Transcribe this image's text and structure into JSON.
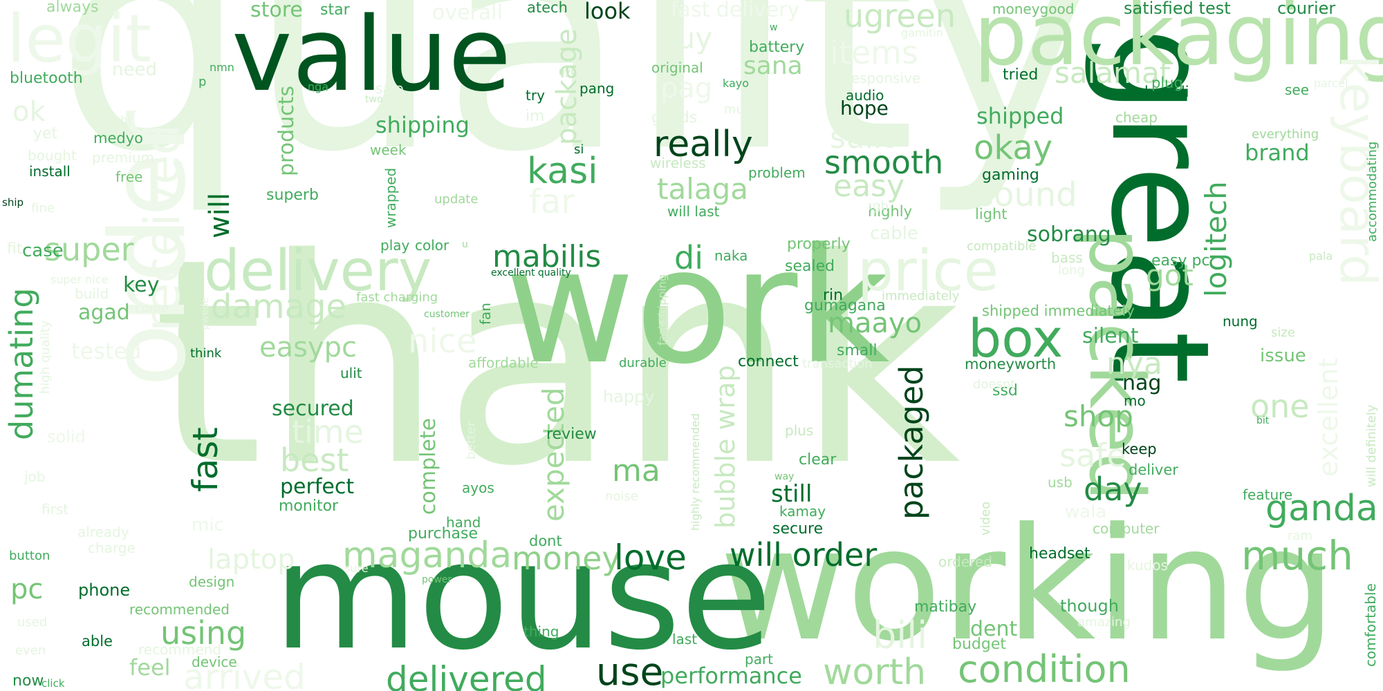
{
  "cloud": {
    "palette": [
      "#e5f5e0",
      "#c7e9c0",
      "#a1d99b",
      "#74c476",
      "#41ab5d",
      "#238b45",
      "#006d2c",
      "#00441b"
    ],
    "words": [
      {
        "text": "quality",
        "color": "#e5f5e0"
      },
      {
        "text": "thank",
        "color": "#d4eecb"
      },
      {
        "text": "work",
        "color": "#8fd18a"
      },
      {
        "text": "working",
        "color": "#a1d99b"
      },
      {
        "text": "mouse",
        "color": "#238b45"
      },
      {
        "text": "value",
        "color": "#00541f"
      },
      {
        "text": "great",
        "color": "#006d2c"
      },
      {
        "text": "packaging",
        "color": "#b8e3ad"
      },
      {
        "text": "order",
        "color": "#eef8ea"
      },
      {
        "text": "legit",
        "color": "#eef8ea"
      },
      {
        "text": "keyboard",
        "color": "#eef8ea"
      },
      {
        "text": "packed",
        "color": "#a1d99b"
      },
      {
        "text": "delivery",
        "color": "#c7e9c0"
      },
      {
        "text": "price",
        "color": "#e5f5e0"
      },
      {
        "text": "box",
        "color": "#41ab5d"
      },
      {
        "text": "received",
        "color": "#eef8ea"
      },
      {
        "text": "condition",
        "color": "#74c476"
      },
      {
        "text": "delivered",
        "color": "#41ab5d"
      },
      {
        "text": "worth",
        "color": "#a1d99b"
      },
      {
        "text": "bili",
        "color": "#e5f5e0"
      },
      {
        "text": "use",
        "color": "#00441b"
      },
      {
        "text": "performance",
        "color": "#41ab5d"
      },
      {
        "text": "arrived",
        "color": "#eef8ea"
      },
      {
        "text": "feel",
        "color": "#a1d99b"
      },
      {
        "text": "using",
        "color": "#74c476"
      },
      {
        "text": "maganda",
        "color": "#a1d99b"
      },
      {
        "text": "money",
        "color": "#8fd18a"
      },
      {
        "text": "love",
        "color": "#006d2c"
      },
      {
        "text": "will order",
        "color": "#006d2c"
      },
      {
        "text": "much",
        "color": "#74c476"
      },
      {
        "text": "ganda",
        "color": "#41ab5d"
      },
      {
        "text": "really",
        "color": "#00441b"
      },
      {
        "text": "kasi",
        "color": "#41ab5d"
      },
      {
        "text": "mabilis",
        "color": "#238b45"
      },
      {
        "text": "di",
        "color": "#41ab5d"
      },
      {
        "text": "smooth",
        "color": "#238b45"
      },
      {
        "text": "okay",
        "color": "#74c476"
      },
      {
        "text": "sound",
        "color": "#e5f5e0"
      },
      {
        "text": "easy",
        "color": "#c7e9c0"
      },
      {
        "text": "talaga",
        "color": "#a1d99b"
      },
      {
        "text": "sulit",
        "color": "#e5f5e0"
      },
      {
        "text": "ugreen",
        "color": "#c7e9c0"
      },
      {
        "text": "items",
        "color": "#eef8ea"
      },
      {
        "text": "buy",
        "color": "#e5f5e0"
      },
      {
        "text": "sana",
        "color": "#a1d99b"
      },
      {
        "text": "salamat",
        "color": "#c7e9c0"
      },
      {
        "text": "pag",
        "color": "#eef8ea"
      },
      {
        "text": "package",
        "color": "#c7e9c0"
      },
      {
        "text": "shipping",
        "color": "#41ab5d"
      },
      {
        "text": "products",
        "color": "#74c476"
      },
      {
        "text": "will",
        "color": "#006d2c"
      },
      {
        "text": "fast",
        "color": "#006d2c"
      },
      {
        "text": "super",
        "color": "#a1d99b"
      },
      {
        "text": "damage",
        "color": "#c7e9c0"
      },
      {
        "text": "easypc",
        "color": "#a1d99b"
      },
      {
        "text": "nice",
        "color": "#eef8ea"
      },
      {
        "text": "time",
        "color": "#e5f5e0"
      },
      {
        "text": "best",
        "color": "#c7e9c0"
      },
      {
        "text": "perfect",
        "color": "#006d2c"
      },
      {
        "text": "secured",
        "color": "#238b45"
      },
      {
        "text": "dumating",
        "color": "#41ab5d"
      },
      {
        "text": "key",
        "color": "#238b45"
      },
      {
        "text": "agad",
        "color": "#74c476"
      },
      {
        "text": "case",
        "color": "#41ab5d"
      },
      {
        "text": "laptop",
        "color": "#e5f5e0"
      },
      {
        "text": "pc",
        "color": "#74c476"
      },
      {
        "text": "expected",
        "color": "#a1d99b"
      },
      {
        "text": "complete",
        "color": "#74c476"
      },
      {
        "text": "bubble wrap",
        "color": "#c7e9c0"
      },
      {
        "text": "packaged",
        "color": "#00441b"
      },
      {
        "text": "maayo",
        "color": "#74c476"
      },
      {
        "text": "ma",
        "color": "#74c476"
      },
      {
        "text": "shop",
        "color": "#74c476"
      },
      {
        "text": "day",
        "color": "#238b45"
      },
      {
        "text": "nya",
        "color": "#c7e9c0"
      },
      {
        "text": "safe",
        "color": "#e5f5e0"
      },
      {
        "text": "silent",
        "color": "#41ab5d"
      },
      {
        "text": "logitech",
        "color": "#41ab5d"
      },
      {
        "text": "got",
        "color": "#a1d99b"
      },
      {
        "text": "sobrang",
        "color": "#238b45"
      },
      {
        "text": "one",
        "color": "#c7e9c0"
      },
      {
        "text": "nag",
        "color": "#00441b"
      },
      {
        "text": "shipped",
        "color": "#41ab5d"
      },
      {
        "text": "brand",
        "color": "#41ab5d"
      },
      {
        "text": "excellent",
        "color": "#eef8ea"
      },
      {
        "text": "look",
        "color": "#00441b"
      },
      {
        "text": "overall",
        "color": "#eef8ea"
      },
      {
        "text": "fast delivery",
        "color": "#eef8ea"
      },
      {
        "text": "store",
        "color": "#74c476"
      },
      {
        "text": "star",
        "color": "#41ab5d"
      },
      {
        "text": "atech",
        "color": "#238b45"
      },
      {
        "text": "always",
        "color": "#a1d99b"
      },
      {
        "text": "satisfied test",
        "color": "#238b45"
      },
      {
        "text": "courier",
        "color": "#238b45"
      },
      {
        "text": "moneygood",
        "color": "#74c476"
      },
      {
        "text": "hope",
        "color": "#00441b"
      },
      {
        "text": "audio",
        "color": "#006d2c"
      },
      {
        "text": "shipped immediately",
        "color": "#74c476"
      },
      {
        "text": "moneyworth",
        "color": "#238b45"
      },
      {
        "text": "connect",
        "color": "#006d2c"
      },
      {
        "text": "review",
        "color": "#238b45"
      },
      {
        "text": "still",
        "color": "#006d2c"
      },
      {
        "text": "purchase",
        "color": "#41ab5d"
      },
      {
        "text": "monitor",
        "color": "#41ab5d"
      },
      {
        "text": "headset",
        "color": "#006d2c"
      },
      {
        "text": "matibay",
        "color": "#41ab5d"
      },
      {
        "text": "dent",
        "color": "#74c476"
      },
      {
        "text": "budget",
        "color": "#74c476"
      },
      {
        "text": "though",
        "color": "#41ab5d"
      },
      {
        "text": "phone",
        "color": "#006d2c"
      },
      {
        "text": "bluetooth",
        "color": "#41ab5d"
      },
      {
        "text": "install",
        "color": "#006d2c"
      },
      {
        "text": "medyo",
        "color": "#41ab5d"
      },
      {
        "text": "free",
        "color": "#74c476"
      },
      {
        "text": "superb",
        "color": "#41ab5d"
      },
      {
        "text": "color",
        "color": "#41ab5d"
      },
      {
        "text": "gaming",
        "color": "#006d2c"
      },
      {
        "text": "battery",
        "color": "#41ab5d"
      },
      {
        "text": "tried",
        "color": "#006d2c"
      },
      {
        "text": "bumili",
        "color": "#006d2c"
      },
      {
        "text": "plug",
        "color": "#41ab5d"
      },
      {
        "text": "easy pc",
        "color": "#41ab5d"
      },
      {
        "text": "ssd",
        "color": "#41ab5d"
      },
      {
        "text": "keep",
        "color": "#00441b"
      },
      {
        "text": "deliver",
        "color": "#41ab5d"
      },
      {
        "text": "mo",
        "color": "#006d2c"
      },
      {
        "text": "nung",
        "color": "#006d2c"
      },
      {
        "text": "issue",
        "color": "#74c476"
      },
      {
        "text": "feature",
        "color": "#41ab5d"
      },
      {
        "text": "comfortable",
        "color": "#41ab5d"
      },
      {
        "text": "accommodating",
        "color": "#41ab5d"
      },
      {
        "text": "able",
        "color": "#006d2c"
      },
      {
        "text": "now",
        "color": "#238b45"
      },
      {
        "text": "click",
        "color": "#41ab5d"
      },
      {
        "text": "button",
        "color": "#41ab5d"
      },
      {
        "text": "ship",
        "color": "#00441b"
      },
      {
        "text": "highly",
        "color": "#74c476"
      },
      {
        "text": "light",
        "color": "#74c476"
      },
      {
        "text": "rin",
        "color": "#006d2c"
      },
      {
        "text": "gumagana",
        "color": "#41ab5d"
      },
      {
        "text": "sealed",
        "color": "#41ab5d"
      },
      {
        "text": "properly",
        "color": "#74c476"
      },
      {
        "text": "small",
        "color": "#41ab5d"
      },
      {
        "text": "naka",
        "color": "#41ab5d"
      },
      {
        "text": "problem",
        "color": "#41ab5d"
      },
      {
        "text": "will last",
        "color": "#41ab5d"
      },
      {
        "text": "kamay",
        "color": "#41ab5d"
      },
      {
        "text": "secure",
        "color": "#006d2c"
      },
      {
        "text": "clear",
        "color": "#41ab5d"
      },
      {
        "text": "dont",
        "color": "#41ab5d"
      },
      {
        "text": "hand",
        "color": "#41ab5d"
      },
      {
        "text": "ayos",
        "color": "#41ab5d"
      },
      {
        "text": "thing",
        "color": "#41ab5d"
      },
      {
        "text": "last",
        "color": "#41ab5d"
      },
      {
        "text": "part",
        "color": "#41ab5d"
      },
      {
        "text": "recommended",
        "color": "#74c476"
      },
      {
        "text": "design",
        "color": "#74c476"
      },
      {
        "text": "device",
        "color": "#74c476"
      },
      {
        "text": "think",
        "color": "#006d2c"
      },
      {
        "text": "ulit",
        "color": "#238b45"
      },
      {
        "text": "durable",
        "color": "#41ab5d"
      },
      {
        "text": "affordable",
        "color": "#a1d99b"
      },
      {
        "text": "fan",
        "color": "#41ab5d"
      },
      {
        "text": "excellent quality",
        "color": "#006d2c"
      },
      {
        "text": "customer",
        "color": "#74c476"
      },
      {
        "text": "fast charging",
        "color": "#a1d99b"
      },
      {
        "text": "wrapped",
        "color": "#41ab5d"
      },
      {
        "text": "play",
        "color": "#41ab5d"
      },
      {
        "text": "update",
        "color": "#a1d99b"
      },
      {
        "text": "week",
        "color": "#74c476"
      },
      {
        "text": "si",
        "color": "#006d2c"
      },
      {
        "text": "try",
        "color": "#006d2c"
      },
      {
        "text": "pang",
        "color": "#006d2c"
      },
      {
        "text": "nga",
        "color": "#41ab5d"
      },
      {
        "text": "nmn",
        "color": "#41ab5d"
      },
      {
        "text": "original",
        "color": "#74c476"
      },
      {
        "text": "kayo",
        "color": "#41ab5d"
      },
      {
        "text": "wireless",
        "color": "#c7e9c0"
      },
      {
        "text": "cable",
        "color": "#e5f5e0"
      },
      {
        "text": "bass",
        "color": "#c7e9c0"
      },
      {
        "text": "usb",
        "color": "#a1d99b"
      },
      {
        "text": "computer",
        "color": "#a1d99b"
      },
      {
        "text": "video",
        "color": "#c7e9c0"
      },
      {
        "text": "see",
        "color": "#41ab5d"
      },
      {
        "text": "cheap",
        "color": "#a1d99b"
      },
      {
        "text": "everything",
        "color": "#a1d99b"
      },
      {
        "text": "size",
        "color": "#c7e9c0"
      },
      {
        "text": "pala",
        "color": "#c7e9c0"
      },
      {
        "text": "bit",
        "color": "#41ab5d"
      },
      {
        "text": "will definitely",
        "color": "#c7e9c0"
      },
      {
        "text": "kudos",
        "color": "#e5f5e0"
      },
      {
        "text": "ordered",
        "color": "#c7e9c0"
      },
      {
        "text": "amazing",
        "color": "#e5f5e0"
      },
      {
        "text": "plus",
        "color": "#c7e9c0"
      },
      {
        "text": "happy",
        "color": "#e5f5e0"
      },
      {
        "text": "way",
        "color": "#74c476"
      },
      {
        "text": "noise",
        "color": "#e5f5e0"
      },
      {
        "text": "better",
        "color": "#e5f5e0"
      },
      {
        "text": "highly recommended",
        "color": "#c7e9c0"
      },
      {
        "text": "fast shipping",
        "color": "#c7e9c0"
      },
      {
        "text": "immediately",
        "color": "#c7e9c0"
      },
      {
        "text": "transaction",
        "color": "#e5f5e0"
      },
      {
        "text": "doesnt",
        "color": "#e5f5e0"
      },
      {
        "text": "compatible",
        "color": "#c7e9c0"
      },
      {
        "text": "rgb",
        "color": "#e5f5e0"
      },
      {
        "text": "responsive",
        "color": "#e5f5e0"
      },
      {
        "text": "gamitin",
        "color": "#e5f5e0"
      },
      {
        "text": "goods",
        "color": "#e5f5e0"
      },
      {
        "text": "mura",
        "color": "#e5f5e0"
      },
      {
        "text": "sale",
        "color": "#e5f5e0"
      },
      {
        "text": "two",
        "color": "#c7e9c0"
      },
      {
        "text": "im",
        "color": "#e5f5e0"
      },
      {
        "text": "mag",
        "color": "#e5f5e0"
      },
      {
        "text": "w",
        "color": "#41ab5d"
      },
      {
        "text": "nyo",
        "color": "#c7e9c0"
      },
      {
        "text": "p",
        "color": "#41ab5d"
      },
      {
        "text": "parcel",
        "color": "#e5f5e0"
      },
      {
        "text": "u",
        "color": "#a1d99b"
      },
      {
        "text": "long",
        "color": "#e5f5e0"
      },
      {
        "text": "need",
        "color": "#e5f5e0"
      },
      {
        "text": "ok",
        "color": "#e5f5e0"
      },
      {
        "text": "yet",
        "color": "#e5f5e0"
      },
      {
        "text": "right",
        "color": "#e5f5e0"
      },
      {
        "text": "premium",
        "color": "#e5f5e0"
      },
      {
        "text": "bought",
        "color": "#e5f5e0"
      },
      {
        "text": "fine",
        "color": "#e5f5e0"
      },
      {
        "text": "fit",
        "color": "#e5f5e0"
      },
      {
        "text": "super nice",
        "color": "#e5f5e0"
      },
      {
        "text": "build",
        "color": "#e5f5e0"
      },
      {
        "text": "come",
        "color": "#e5f5e0"
      },
      {
        "text": "high quality",
        "color": "#e5f5e0"
      },
      {
        "text": "pwede",
        "color": "#e5f5e0"
      },
      {
        "text": "tested",
        "color": "#eef8ea"
      },
      {
        "text": "solid",
        "color": "#eef8ea"
      },
      {
        "text": "job",
        "color": "#e5f5e0"
      },
      {
        "text": "first",
        "color": "#e5f5e0"
      },
      {
        "text": "already",
        "color": "#e5f5e0"
      },
      {
        "text": "mic",
        "color": "#eef8ea"
      },
      {
        "text": "charge",
        "color": "#e5f5e0"
      },
      {
        "text": "sure",
        "color": "#e5f5e0"
      },
      {
        "text": "power",
        "color": "#74c476"
      },
      {
        "text": "used",
        "color": "#e5f5e0"
      },
      {
        "text": "even",
        "color": "#e5f5e0"
      },
      {
        "text": "recommend",
        "color": "#e5f5e0"
      },
      {
        "text": "wala",
        "color": "#eef8ea"
      },
      {
        "text": "ram",
        "color": "#e5f5e0"
      },
      {
        "text": "far",
        "color": "#eef8ea"
      }
    ]
  }
}
